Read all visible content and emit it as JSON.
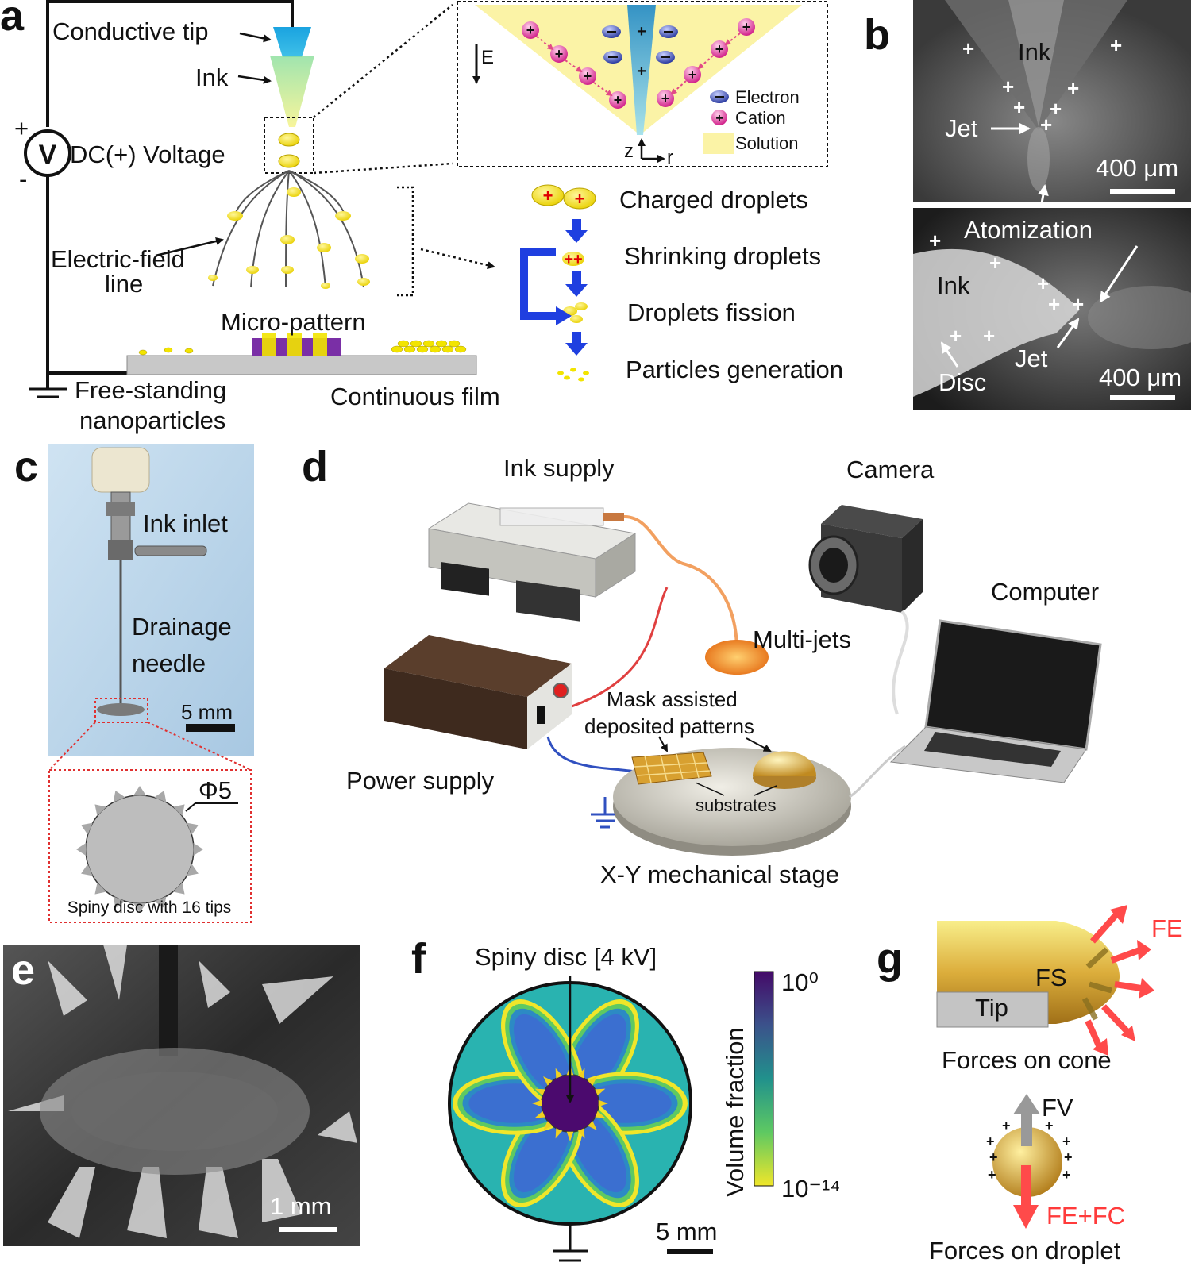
{
  "panels": {
    "a": {
      "letter": "a",
      "conductive_tip": "Conductive tip",
      "ink": "Ink",
      "voltage_plus": "+",
      "voltage_minus": "-",
      "voltmeter": "V",
      "voltage": "DC(+) Voltage",
      "field_line_1": "Electric-field",
      "field_line_2": "line",
      "micro_pattern": "Micro-pattern",
      "free_standing_1": "Free-standing",
      "free_standing_2": "nanoparticles",
      "continuous_film": "Continuous film",
      "inset": {
        "e_label": "E",
        "legend": [
          "Electron",
          "Cation",
          "Solution"
        ],
        "z_label": "z",
        "r_label": "r"
      },
      "process_steps": [
        "Charged droplets",
        "Shrinking droplets",
        "Droplets fission",
        "Particles generation"
      ]
    },
    "b": {
      "letter": "b",
      "top": {
        "ink": "Ink",
        "jet": "Jet",
        "scale": "400 μm"
      },
      "atomization": "Atomization",
      "bottom": {
        "ink": "Ink",
        "jet": "Jet",
        "disc": "Disc",
        "scale": "400 μm"
      }
    },
    "c": {
      "letter": "c",
      "ink_inlet": "Ink  inlet",
      "drainage_1": "Drainage",
      "drainage_2": "needle",
      "scale": "5 mm",
      "phi": "Φ5",
      "disc_caption": "Spiny disc with 16 tips"
    },
    "d": {
      "letter": "d",
      "ink_supply": "Ink supply",
      "camera": "Camera",
      "computer": "Computer",
      "multi_jets": "Multi-jets",
      "mask_1": "Mask assisted",
      "mask_2": "deposited  patterns",
      "power_supply": "Power supply",
      "substrates": "substrates",
      "stage": "X-Y mechanical stage"
    },
    "e": {
      "letter": "e",
      "scale": "1 mm"
    },
    "f": {
      "letter": "f",
      "title": "Spiny disc [4 kV]",
      "colorbar_label": "Volume fraction",
      "colorbar_max": "10⁰",
      "colorbar_min": "10⁻¹⁴",
      "scale": "5 mm"
    },
    "g": {
      "letter": "g",
      "fe": "FE",
      "fs": "FS",
      "tip": "Tip",
      "cone_caption": "Forces on cone",
      "fv": "FV",
      "fe_fc": "FE+FC",
      "droplet_caption": "Forces on droplet"
    }
  },
  "colors": {
    "droplet": "#f2e400",
    "arrow_blue": "#1f3fe0",
    "force_red": "#ff4a4a",
    "substrate_gray": "#c8c8c8",
    "pattern_purple": "#7a2fa6"
  }
}
